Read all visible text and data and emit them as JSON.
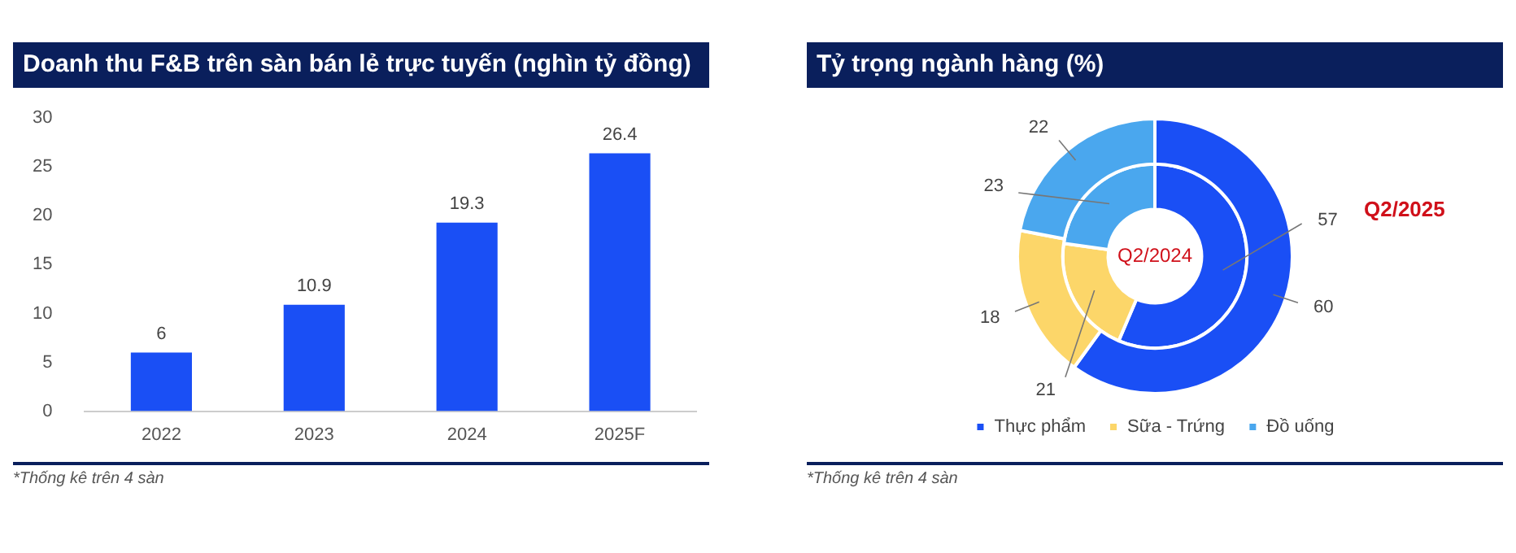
{
  "chart_data": [
    {
      "type": "bar",
      "title": "Doanh thu F&B trên sàn bán lẻ trực tuyến (nghìn tỷ đồng)",
      "categories": [
        "2022",
        "2023",
        "2024",
        "2025F"
      ],
      "values": [
        6,
        10.9,
        19.3,
        26.4
      ],
      "color": "#1a4ff5",
      "ylim": [
        0,
        30
      ],
      "yticks": [
        0,
        5,
        10,
        15,
        20,
        25,
        30
      ],
      "grid": false,
      "legend": false,
      "data_labels": true,
      "annotations": [
        "*Thống kê trên 4 sàn"
      ]
    },
    {
      "type": "donut",
      "title": "Tỷ trọng ngành hàng (%)",
      "categories": [
        "Thực phẩm",
        "Sữa - Trứng",
        "Đồ uống"
      ],
      "colors": [
        "#1a4ff5",
        "#fcd669",
        "#4aa7ee"
      ],
      "series": [
        {
          "name": "Q2/2025",
          "values": [
            60,
            18,
            22
          ]
        },
        {
          "name": "Q2/2024",
          "values": [
            57,
            21,
            23
          ]
        }
      ],
      "legend": "bottom",
      "data_labels": true,
      "annotations": [
        "*Thống kê trên 4 sàn"
      ]
    }
  ]
}
